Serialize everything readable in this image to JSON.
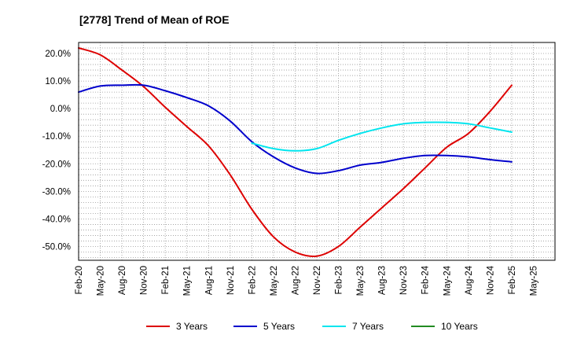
{
  "chart_data": {
    "type": "line",
    "title": "[2778]  Trend of Mean of ROE",
    "xlabel": "",
    "ylabel": "",
    "x_ticks": [
      "Feb-20",
      "May-20",
      "Aug-20",
      "Nov-20",
      "Feb-21",
      "May-21",
      "Aug-21",
      "Nov-21",
      "Feb-22",
      "May-22",
      "Aug-22",
      "Nov-22",
      "Feb-23",
      "May-23",
      "Aug-23",
      "Nov-23",
      "Feb-24",
      "May-24",
      "Aug-24",
      "Nov-24",
      "Feb-25",
      "May-25"
    ],
    "y_ticks": [
      "20.0%",
      "10.0%",
      "0.0%",
      "-10.0%",
      "-20.0%",
      "-30.0%",
      "-40.0%",
      "-50.0%"
    ],
    "y_tick_values": [
      20,
      10,
      0,
      -10,
      -20,
      -30,
      -40,
      -50
    ],
    "ylim": [
      -55,
      24
    ],
    "grid": true,
    "legend_position": "bottom",
    "series": [
      {
        "name": "3 Years",
        "color": "#dd0000",
        "x": [
          "Feb-20",
          "May-20",
          "Aug-20",
          "Nov-20",
          "Feb-21",
          "May-21",
          "Aug-21",
          "Nov-21",
          "Feb-22",
          "May-22",
          "Aug-22",
          "Nov-22",
          "Feb-23",
          "May-23",
          "Aug-23",
          "Nov-23",
          "Feb-24",
          "May-24",
          "Aug-24",
          "Nov-24",
          "Feb-25"
        ],
        "values": [
          22,
          19.5,
          14,
          8,
          0.5,
          -6.5,
          -13.5,
          -24,
          -36.5,
          -46.5,
          -52,
          -53.5,
          -50,
          -43,
          -36,
          -29,
          -21.5,
          -14,
          -9,
          -1,
          8.5
        ]
      },
      {
        "name": "5 Years",
        "color": "#0000cc",
        "x": [
          "Feb-20",
          "May-20",
          "Aug-20",
          "Nov-20",
          "Feb-21",
          "May-21",
          "Aug-21",
          "Nov-21",
          "Feb-22",
          "May-22",
          "Aug-22",
          "Nov-22",
          "Feb-23",
          "May-23",
          "Aug-23",
          "Nov-23",
          "Feb-24",
          "May-24",
          "Aug-24",
          "Nov-24",
          "Feb-25"
        ],
        "values": [
          6,
          8.2,
          8.5,
          8.5,
          6.5,
          4,
          1,
          -4.5,
          -12,
          -17.5,
          -21.5,
          -23.5,
          -22.5,
          -20.5,
          -19.5,
          -18,
          -17,
          -17,
          -17.5,
          -18.5,
          -19.3
        ]
      },
      {
        "name": "7 Years",
        "color": "#00e5ee",
        "x": [
          "Feb-22",
          "May-22",
          "Aug-22",
          "Nov-22",
          "Feb-23",
          "May-23",
          "Aug-23",
          "Nov-23",
          "Feb-24",
          "May-24",
          "Aug-24",
          "Nov-24",
          "Feb-25"
        ],
        "values": [
          -12.5,
          -14.5,
          -15.3,
          -14.5,
          -11.5,
          -9,
          -7,
          -5.5,
          -5,
          -5,
          -5.5,
          -7,
          -8.5
        ]
      },
      {
        "name": "10 Years",
        "color": "#228b22",
        "x": [],
        "values": []
      }
    ]
  }
}
